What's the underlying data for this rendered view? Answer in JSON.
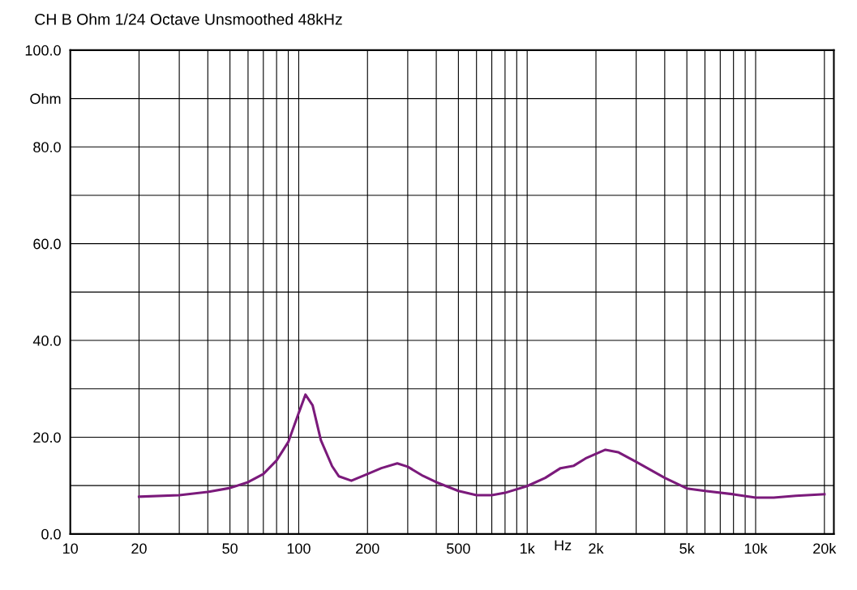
{
  "chart_data": {
    "type": "line",
    "title": "CH B Ohm 1/24 Octave Unsmoothed 48kHz",
    "xlabel": "Hz",
    "log": "x",
    "grid": true,
    "marker": "none",
    "line_style": "solid",
    "x": [
      20,
      30,
      40,
      50,
      60,
      70,
      80,
      90,
      100,
      107,
      115,
      125,
      140,
      150,
      170,
      200,
      230,
      270,
      300,
      350,
      400,
      500,
      600,
      700,
      800,
      1000,
      1200,
      1400,
      1600,
      1800,
      2200,
      2500,
      3000,
      4000,
      5000,
      6000,
      8000,
      10000,
      12000,
      15000,
      20000
    ],
    "series": [
      {
        "color": "#7b1a7b",
        "values": [
          7.7,
          8.0,
          8.7,
          9.5,
          10.7,
          12.4,
          15.2,
          19.0,
          25.0,
          28.8,
          26.6,
          19.4,
          14.0,
          11.9,
          11.0,
          12.4,
          13.6,
          14.6,
          13.9,
          12.0,
          10.7,
          8.9,
          8.0,
          8.0,
          8.5,
          9.9,
          11.6,
          13.6,
          14.1,
          15.6,
          17.4,
          16.9,
          14.9,
          11.6,
          9.4,
          8.9,
          8.2,
          7.5,
          7.5,
          7.9,
          8.2
        ]
      }
    ],
    "xlim": [
      10,
      22000
    ],
    "xticks": [
      10,
      20,
      {
        "value": 30,
        "label": null
      },
      {
        "value": 40,
        "label": null
      },
      50,
      {
        "value": 60,
        "label": null
      },
      {
        "value": 70,
        "label": null
      },
      {
        "value": 80,
        "label": null
      },
      {
        "value": 90,
        "label": null
      },
      100,
      200,
      {
        "value": 300,
        "label": null
      },
      {
        "value": 400,
        "label": null
      },
      500,
      {
        "value": 600,
        "label": null
      },
      {
        "value": 700,
        "label": null
      },
      {
        "value": 800,
        "label": null
      },
      {
        "value": 900,
        "label": null
      },
      {
        "value": 1000,
        "label": "1k"
      },
      {
        "value": 2000,
        "label": "2k"
      },
      {
        "value": 3000,
        "label": null
      },
      {
        "value": 4000,
        "label": null
      },
      {
        "value": 5000,
        "label": "5k"
      },
      {
        "value": 6000,
        "label": null
      },
      {
        "value": 7000,
        "label": null
      },
      {
        "value": 8000,
        "label": null
      },
      {
        "value": 9000,
        "label": null
      },
      {
        "value": 10000,
        "label": "10k"
      },
      {
        "value": 20000,
        "label": "20k"
      }
    ],
    "ylim": [
      0,
      100
    ],
    "yticks": [
      {
        "value": 0,
        "label": "0.0"
      },
      {
        "value": 10,
        "label": null
      },
      {
        "value": 20,
        "label": "20.0"
      },
      {
        "value": 30,
        "label": null
      },
      {
        "value": 40,
        "label": "40.0"
      },
      {
        "value": 50,
        "label": null
      },
      {
        "value": 60,
        "label": "60.0"
      },
      {
        "value": 70,
        "label": null
      },
      {
        "value": 80,
        "label": "80.0"
      },
      {
        "value": 90,
        "label": "Ohm"
      },
      {
        "value": 100,
        "label": "100.0"
      }
    ]
  }
}
